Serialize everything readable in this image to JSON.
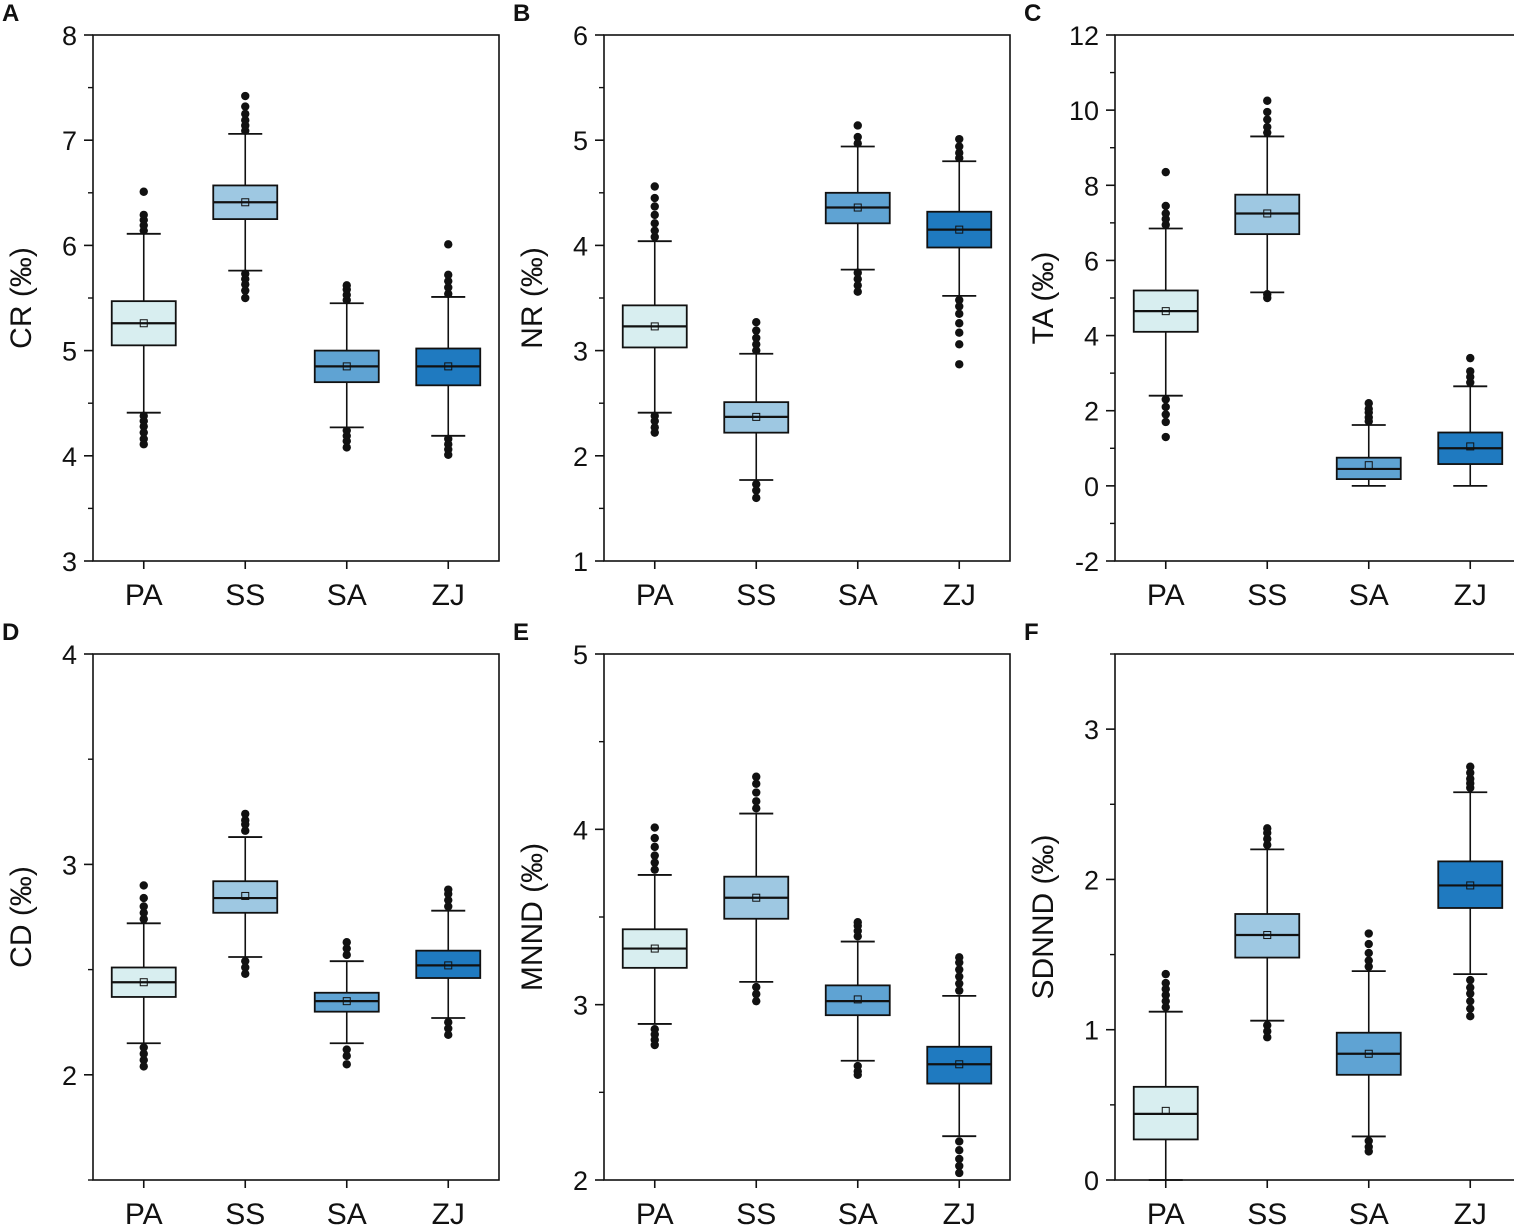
{
  "colors": {
    "PA": "#d8eef0",
    "SS": "#9ec8e2",
    "SA": "#5fa3d3",
    "ZJ": "#1f7ac0",
    "outline": "#111111",
    "text": "#111111"
  },
  "chart_data": [
    {
      "panel": "A",
      "type": "boxplot",
      "ylabel": "CR (‰)",
      "ylim": [
        3,
        8
      ],
      "yticks": [
        3,
        4,
        5,
        6,
        7,
        8
      ],
      "categories": [
        "PA",
        "SS",
        "SA",
        "ZJ"
      ],
      "boxes": [
        {
          "name": "PA",
          "whisker_low": 4.41,
          "q1": 5.05,
          "median": 5.26,
          "q3": 5.47,
          "whisker_high": 6.11,
          "mean": 5.26,
          "outliers_low": [
            4.38,
            4.33,
            4.28,
            4.22,
            4.16,
            4.11
          ],
          "outliers_high": [
            6.14,
            6.19,
            6.24,
            6.29,
            6.51
          ]
        },
        {
          "name": "SS",
          "whisker_low": 5.76,
          "q1": 6.25,
          "median": 6.41,
          "q3": 6.57,
          "whisker_high": 7.06,
          "mean": 6.41,
          "outliers_low": [
            5.73,
            5.68,
            5.63,
            5.57,
            5.5
          ],
          "outliers_high": [
            7.09,
            7.14,
            7.19,
            7.25,
            7.32,
            7.42
          ]
        },
        {
          "name": "SA",
          "whisker_low": 4.27,
          "q1": 4.7,
          "median": 4.85,
          "q3": 5.0,
          "whisker_high": 5.45,
          "mean": 4.85,
          "outliers_low": [
            4.24,
            4.19,
            4.14,
            4.08
          ],
          "outliers_high": [
            5.48,
            5.53,
            5.58,
            5.62
          ]
        },
        {
          "name": "ZJ",
          "whisker_low": 4.19,
          "q1": 4.67,
          "median": 4.85,
          "q3": 5.02,
          "whisker_high": 5.51,
          "mean": 4.85,
          "outliers_low": [
            4.16,
            4.11,
            4.06,
            4.01
          ],
          "outliers_high": [
            5.54,
            5.6,
            5.66,
            5.72,
            6.01
          ]
        }
      ]
    },
    {
      "panel": "B",
      "type": "boxplot",
      "ylabel": "NR (‰)",
      "ylim": [
        1,
        6
      ],
      "yticks": [
        1,
        2,
        3,
        4,
        5,
        6
      ],
      "categories": [
        "PA",
        "SS",
        "SA",
        "ZJ"
      ],
      "boxes": [
        {
          "name": "PA",
          "whisker_low": 2.41,
          "q1": 3.03,
          "median": 3.23,
          "q3": 3.43,
          "whisker_high": 4.04,
          "mean": 3.23,
          "outliers_low": [
            2.38,
            2.33,
            2.27,
            2.22
          ],
          "outliers_high": [
            4.08,
            4.14,
            4.21,
            4.29,
            4.37,
            4.45,
            4.56
          ]
        },
        {
          "name": "SS",
          "whisker_low": 1.77,
          "q1": 2.22,
          "median": 2.37,
          "q3": 2.51,
          "whisker_high": 2.97,
          "mean": 2.37,
          "outliers_low": [
            1.73,
            1.67,
            1.6
          ],
          "outliers_high": [
            3.0,
            3.06,
            3.12,
            3.19,
            3.27
          ]
        },
        {
          "name": "SA",
          "whisker_low": 3.77,
          "q1": 4.21,
          "median": 4.36,
          "q3": 4.5,
          "whisker_high": 4.94,
          "mean": 4.36,
          "outliers_low": [
            3.74,
            3.68,
            3.62,
            3.56
          ],
          "outliers_high": [
            4.97,
            5.03,
            5.14
          ]
        },
        {
          "name": "ZJ",
          "whisker_low": 3.52,
          "q1": 3.98,
          "median": 4.15,
          "q3": 4.32,
          "whisker_high": 4.8,
          "mean": 4.15,
          "outliers_low": [
            3.48,
            3.42,
            3.35,
            3.26,
            3.17,
            3.06,
            2.87
          ],
          "outliers_high": [
            4.83,
            4.88,
            4.94,
            5.01
          ]
        }
      ]
    },
    {
      "panel": "C",
      "type": "boxplot",
      "ylabel": "TA (‰)",
      "ylim": [
        -2,
        12
      ],
      "yticks": [
        -2,
        0,
        2,
        4,
        6,
        8,
        10,
        12
      ],
      "categories": [
        "PA",
        "SS",
        "SA",
        "ZJ"
      ],
      "boxes": [
        {
          "name": "PA",
          "whisker_low": 2.4,
          "q1": 4.1,
          "median": 4.65,
          "q3": 5.2,
          "whisker_high": 6.85,
          "mean": 4.65,
          "outliers_low": [
            2.3,
            2.1,
            1.9,
            1.7,
            1.3
          ],
          "outliers_high": [
            6.95,
            7.1,
            7.25,
            7.45,
            8.35
          ]
        },
        {
          "name": "SS",
          "whisker_low": 5.15,
          "q1": 6.7,
          "median": 7.25,
          "q3": 7.75,
          "whisker_high": 9.3,
          "mean": 7.25,
          "outliers_low": [
            5.1,
            5.0
          ],
          "outliers_high": [
            9.4,
            9.55,
            9.75,
            9.95,
            10.25
          ]
        },
        {
          "name": "SA",
          "whisker_low": 0.0,
          "q1": 0.18,
          "median": 0.45,
          "q3": 0.75,
          "whisker_high": 1.62,
          "mean": 0.55,
          "outliers_low": [],
          "outliers_high": [
            1.72,
            1.82,
            1.95,
            2.05,
            2.2
          ]
        },
        {
          "name": "ZJ",
          "whisker_low": 0.0,
          "q1": 0.58,
          "median": 1.0,
          "q3": 1.42,
          "whisker_high": 2.65,
          "mean": 1.05,
          "outliers_low": [],
          "outliers_high": [
            2.75,
            2.9,
            3.05,
            3.4
          ]
        }
      ]
    },
    {
      "panel": "D",
      "type": "boxplot",
      "ylabel": "CD (‰)",
      "ylim": [
        1.5,
        4
      ],
      "yticks": [
        2,
        3,
        4
      ],
      "categories": [
        "PA",
        "SS",
        "SA",
        "ZJ"
      ],
      "boxes": [
        {
          "name": "PA",
          "whisker_low": 2.15,
          "q1": 2.37,
          "median": 2.44,
          "q3": 2.51,
          "whisker_high": 2.72,
          "mean": 2.44,
          "outliers_low": [
            2.13,
            2.1,
            2.07,
            2.04
          ],
          "outliers_high": [
            2.74,
            2.77,
            2.8,
            2.84,
            2.9
          ]
        },
        {
          "name": "SS",
          "whisker_low": 2.56,
          "q1": 2.77,
          "median": 2.84,
          "q3": 2.92,
          "whisker_high": 3.13,
          "mean": 2.85,
          "outliers_low": [
            2.54,
            2.51,
            2.48
          ],
          "outliers_high": [
            3.16,
            3.19,
            3.21,
            3.24
          ]
        },
        {
          "name": "SA",
          "whisker_low": 2.15,
          "q1": 2.3,
          "median": 2.35,
          "q3": 2.39,
          "whisker_high": 2.54,
          "mean": 2.35,
          "outliers_low": [
            2.12,
            2.09,
            2.05
          ],
          "outliers_high": [
            2.57,
            2.6,
            2.63
          ]
        },
        {
          "name": "ZJ",
          "whisker_low": 2.27,
          "q1": 2.46,
          "median": 2.52,
          "q3": 2.59,
          "whisker_high": 2.78,
          "mean": 2.52,
          "outliers_low": [
            2.25,
            2.22,
            2.19
          ],
          "outliers_high": [
            2.8,
            2.83,
            2.86,
            2.88
          ]
        }
      ]
    },
    {
      "panel": "E",
      "type": "boxplot",
      "ylabel": "MNND (‰)",
      "ylim": [
        2,
        5
      ],
      "yticks": [
        2,
        3,
        4,
        5
      ],
      "categories": [
        "PA",
        "SS",
        "SA",
        "ZJ"
      ],
      "boxes": [
        {
          "name": "PA",
          "whisker_low": 2.89,
          "q1": 3.21,
          "median": 3.32,
          "q3": 3.43,
          "whisker_high": 3.74,
          "mean": 3.32,
          "outliers_low": [
            2.86,
            2.83,
            2.8,
            2.77
          ],
          "outliers_high": [
            3.77,
            3.81,
            3.85,
            3.9,
            3.95,
            4.01
          ]
        },
        {
          "name": "SS",
          "whisker_low": 3.13,
          "q1": 3.49,
          "median": 3.61,
          "q3": 3.73,
          "whisker_high": 4.09,
          "mean": 3.61,
          "outliers_low": [
            3.1,
            3.06,
            3.02
          ],
          "outliers_high": [
            4.12,
            4.16,
            4.21,
            4.26,
            4.3
          ]
        },
        {
          "name": "SA",
          "whisker_low": 2.68,
          "q1": 2.94,
          "median": 3.02,
          "q3": 3.11,
          "whisker_high": 3.36,
          "mean": 3.03,
          "outliers_low": [
            2.65,
            2.62,
            2.6
          ],
          "outliers_high": [
            3.39,
            3.42,
            3.45,
            3.47
          ]
        },
        {
          "name": "ZJ",
          "whisker_low": 2.25,
          "q1": 2.55,
          "median": 2.66,
          "q3": 2.76,
          "whisker_high": 3.05,
          "mean": 2.66,
          "outliers_low": [
            2.22,
            2.17,
            2.12,
            2.08,
            2.04
          ],
          "outliers_high": [
            3.08,
            3.12,
            3.16,
            3.2,
            3.24,
            3.27
          ]
        }
      ]
    },
    {
      "panel": "F",
      "type": "boxplot",
      "ylabel": "SDNND (‰)",
      "ylim": [
        0,
        3.5
      ],
      "yticks": [
        0,
        1,
        2,
        3
      ],
      "categories": [
        "PA",
        "SS",
        "SA",
        "ZJ"
      ],
      "boxes": [
        {
          "name": "PA",
          "whisker_low": 0.0,
          "q1": 0.27,
          "median": 0.44,
          "q3": 0.62,
          "whisker_high": 1.12,
          "mean": 0.46,
          "outliers_low": [],
          "outliers_high": [
            1.15,
            1.19,
            1.23,
            1.27,
            1.31,
            1.37
          ]
        },
        {
          "name": "SS",
          "whisker_low": 1.06,
          "q1": 1.48,
          "median": 1.63,
          "q3": 1.77,
          "whisker_high": 2.2,
          "mean": 1.63,
          "outliers_low": [
            1.03,
            0.99,
            0.95
          ],
          "outliers_high": [
            2.23,
            2.27,
            2.31,
            2.34
          ]
        },
        {
          "name": "SA",
          "whisker_low": 0.29,
          "q1": 0.7,
          "median": 0.84,
          "q3": 0.98,
          "whisker_high": 1.39,
          "mean": 0.84,
          "outliers_low": [
            0.26,
            0.22,
            0.19
          ],
          "outliers_high": [
            1.42,
            1.46,
            1.51,
            1.57,
            1.64
          ]
        },
        {
          "name": "ZJ",
          "whisker_low": 1.37,
          "q1": 1.81,
          "median": 1.96,
          "q3": 2.12,
          "whisker_high": 2.58,
          "mean": 1.96,
          "outliers_low": [
            1.33,
            1.28,
            1.24,
            1.19,
            1.14,
            1.09
          ],
          "outliers_high": [
            2.61,
            2.64,
            2.67,
            2.71,
            2.75
          ]
        }
      ]
    }
  ]
}
